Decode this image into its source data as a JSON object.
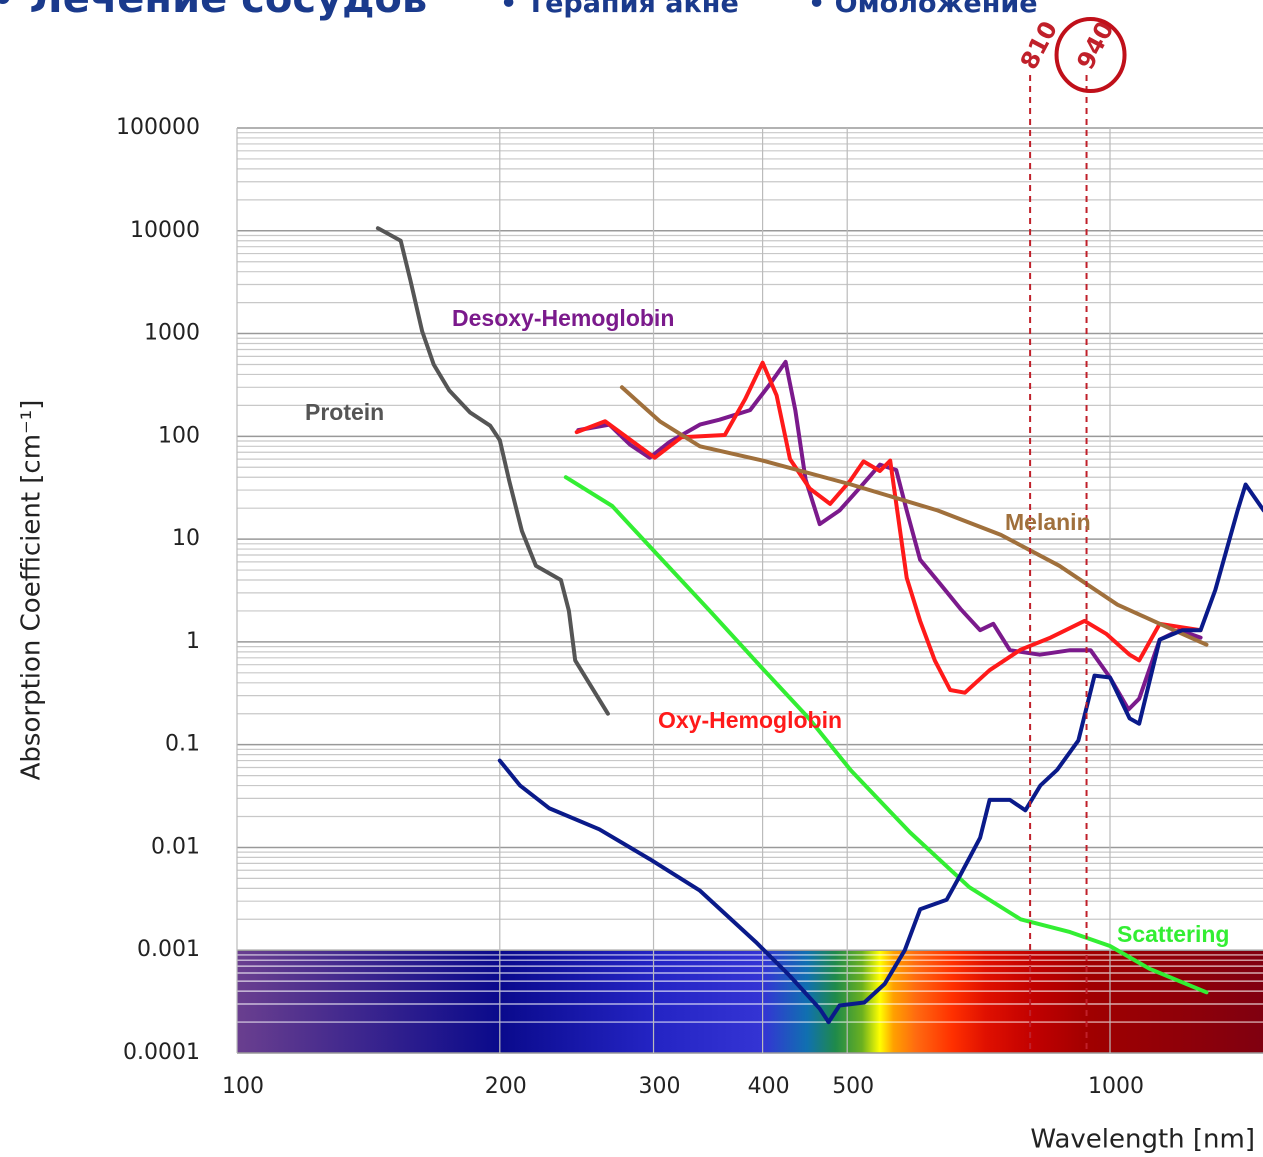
{
  "header": {
    "items": [
      "• Лечение сосудов",
      "• Терапия акне",
      "• Омоложение"
    ]
  },
  "chart_data": {
    "type": "line",
    "xlabel": "Wavelength [nm]",
    "ylabel": "Absorption Coefficient [cm⁻¹]",
    "xscale": "log",
    "yscale": "log",
    "grid": true,
    "xlim": [
      100,
      1500
    ],
    "ylim": [
      0.0001,
      100000
    ],
    "xticks": [
      100,
      200,
      300,
      400,
      500,
      1000
    ],
    "yticks": [
      100000,
      10000,
      1000,
      100,
      10,
      1,
      0.1,
      0.01,
      0.001,
      0.0001
    ],
    "markers": [
      810,
      940
    ],
    "series": [
      {
        "name": "Protein",
        "color": "#555555",
        "x": [
          145,
          154,
          158,
          163,
          168,
          175,
          185,
          195,
          200,
          205,
          212,
          220,
          235,
          240,
          244,
          266
        ],
        "values": [
          10600,
          8000,
          3300,
          1050,
          500,
          280,
          170,
          127,
          92,
          37,
          12,
          5.5,
          4,
          2,
          0.66,
          0.2
        ]
      },
      {
        "name": "Desoxy-Hemoglobin",
        "color": "#7b1a8c",
        "x": [
          246,
          267,
          282,
          297,
          313,
          339,
          357,
          387,
          407,
          425,
          436,
          448,
          465,
          490,
          516,
          545,
          569,
          585,
          606,
          640,
          674,
          710,
          735,
          768,
          831,
          900,
          950,
          1000,
          1050,
          1080,
          1140,
          1200,
          1270
        ],
        "values": [
          115,
          130,
          83,
          62,
          88,
          130,
          145,
          180,
          315,
          530,
          180,
          38,
          14,
          19,
          31,
          53,
          47,
          19,
          6.3,
          3.6,
          2.1,
          1.3,
          1.5,
          0.83,
          0.75,
          0.83,
          0.83,
          0.45,
          0.22,
          0.28,
          1.05,
          1.3,
          1.1
        ]
      },
      {
        "name": "Oxy-Hemoglobin",
        "color": "#ff1a1a",
        "x": [
          245,
          264,
          282,
          301,
          323,
          362,
          382,
          400,
          415,
          430,
          453,
          478,
          504,
          522,
          545,
          560,
          585,
          606,
          630,
          656,
          682,
          728,
          790,
          855,
          935,
          990,
          1053,
          1080,
          1140,
          1270
        ],
        "values": [
          110,
          140,
          93,
          62,
          98,
          103,
          230,
          520,
          250,
          60,
          31,
          22,
          37,
          57,
          46,
          58,
          4.2,
          1.6,
          0.66,
          0.34,
          0.32,
          0.53,
          0.84,
          1.1,
          1.6,
          1.2,
          0.75,
          0.66,
          1.5,
          1.3
        ]
      },
      {
        "name": "Melanin",
        "color": "#a0703c",
        "x": [
          276,
          305,
          339,
          400,
          505,
          635,
          750,
          875,
          1020,
          1140,
          1290
        ],
        "values": [
          300,
          140,
          80,
          58,
          34,
          19,
          11,
          5.5,
          2.3,
          1.5,
          0.94
        ]
      },
      {
        "name": "Scattering",
        "color": "#33ee33",
        "x": [
          238,
          269,
          297,
          348,
          400,
          452,
          505,
          590,
          690,
          790,
          900,
          1000,
          1110,
          1290
        ],
        "values": [
          40,
          21,
          8.5,
          2,
          0.55,
          0.18,
          0.056,
          0.014,
          0.0041,
          0.002,
          0.0015,
          0.0011,
          0.00066,
          0.00039
        ]
      },
      {
        "color": "#0a1a8a",
        "x": [
          200,
          211,
          228,
          260,
          297,
          339,
          393,
          430,
          465,
          476,
          490,
          523,
          552,
          582,
          606,
          650,
          674,
          710,
          728,
          768,
          800,
          832,
          870,
          920,
          960,
          1000,
          1053,
          1080,
          1140,
          1210,
          1270,
          1320,
          1400,
          1430,
          1500
        ],
        "values": [
          0.07,
          0.04,
          0.024,
          0.015,
          0.0077,
          0.0038,
          0.0012,
          0.00056,
          0.00027,
          0.0002,
          0.00029,
          0.00031,
          0.00047,
          0.001,
          0.0025,
          0.0031,
          0.0054,
          0.0124,
          0.029,
          0.029,
          0.023,
          0.04,
          0.057,
          0.11,
          0.47,
          0.45,
          0.18,
          0.16,
          1.05,
          1.3,
          1.3,
          3.2,
          19,
          34,
          19
        ]
      }
    ]
  }
}
